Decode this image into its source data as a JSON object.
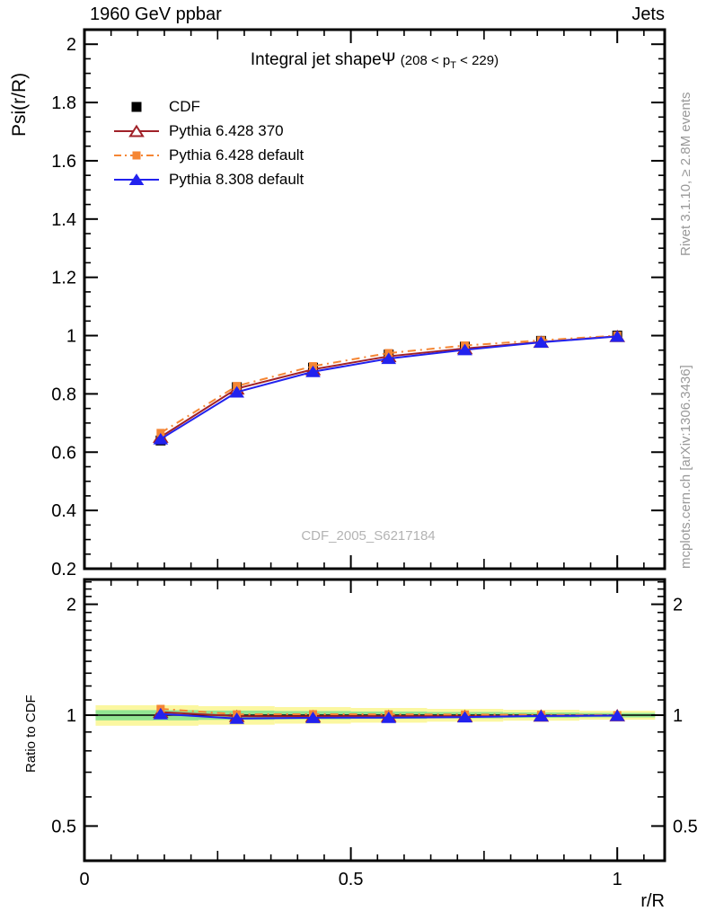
{
  "header": {
    "left_title": "1960 GeV ppbar",
    "right_title": "Jets"
  },
  "plot_title": {
    "main": "Integral jet shape",
    "symbol": "Ψ",
    "cut_prefix": "(208 < p",
    "cut_sub": "T",
    "cut_suffix": " < 229)"
  },
  "watermark": "CDF_2005_S6217184",
  "side_notes": {
    "top": "Rivet 3.1.10, ≥ 2.8M events",
    "bottom": "mcplots.cern.ch [arXiv:1306.3436]"
  },
  "axes": {
    "main_ylabel": "Psi(r/R)",
    "ratio_ylabel": "Ratio to CDF",
    "xlabel": "r/R",
    "main_yticks": [
      {
        "v": 2.0,
        "label": "2"
      },
      {
        "v": 1.8,
        "label": "1.8"
      },
      {
        "v": 1.6,
        "label": "1.6"
      },
      {
        "v": 1.4,
        "label": "1.4"
      },
      {
        "v": 1.2,
        "label": "1.2"
      },
      {
        "v": 1.0,
        "label": "1"
      },
      {
        "v": 0.8,
        "label": "0.8"
      },
      {
        "v": 0.6,
        "label": "0.6"
      },
      {
        "v": 0.4,
        "label": "0.4"
      },
      {
        "v": 0.2,
        "label": "0.2"
      }
    ],
    "xticks": [
      {
        "v": 0,
        "label": "0"
      },
      {
        "v": 0.5,
        "label": "0.5"
      },
      {
        "v": 1,
        "label": "1"
      }
    ],
    "ratio_yticks": [
      {
        "v": 2,
        "label": "2"
      },
      {
        "v": 1,
        "label": "1"
      },
      {
        "v": 0.5,
        "label": "0.5"
      }
    ]
  },
  "colors": {
    "black": "#000000",
    "dark_red": "#a02128",
    "orange": "#f58634",
    "blue": "#2222ee",
    "band_yellow": "#fbf7a0",
    "band_green": "#92e492",
    "gray_note": "#999999",
    "watermark_gray": "#b3b3b3"
  },
  "chart_data": {
    "type": "line",
    "title": "Integral jet shape Ψ (208 < pT < 229)",
    "xlabel": "r/R",
    "ylabel": "Psi(r/R)",
    "ratio_ylabel": "Ratio to CDF",
    "x": [
      0.143,
      0.286,
      0.429,
      0.571,
      0.714,
      0.857,
      1.0
    ],
    "xlim": [
      0,
      1.089
    ],
    "main_ylim": [
      0.2,
      2.05
    ],
    "ratio_ylim": [
      0.403,
      2.33
    ],
    "ratio_scale": "log",
    "legend_position": "top-left",
    "series": [
      {
        "name": "CDF",
        "role": "reference-data",
        "color": "#000000",
        "marker": "square",
        "marker_fill": "filled",
        "line": "none",
        "values": [
          0.64,
          0.823,
          0.89,
          0.935,
          0.962,
          0.982,
          1.0
        ],
        "ratio": [
          1,
          1,
          1,
          1,
          1,
          1,
          1
        ]
      },
      {
        "name": "Pythia 6.428 370",
        "role": "mc",
        "color": "#a02128",
        "marker": "triangle",
        "marker_fill": "open",
        "line": "solid",
        "values": [
          0.652,
          0.818,
          0.884,
          0.929,
          0.956,
          0.978,
          0.998
        ],
        "ratio": [
          1.019,
          0.994,
          0.993,
          0.994,
          0.994,
          0.996,
          0.998
        ]
      },
      {
        "name": "Pythia 6.428 default",
        "role": "mc",
        "color": "#f58634",
        "marker": "square",
        "marker_fill": "filled",
        "line": "dashdot",
        "values": [
          0.666,
          0.827,
          0.895,
          0.94,
          0.966,
          0.984,
          1.0
        ],
        "ratio": [
          1.04,
          1.005,
          1.006,
          1.005,
          1.004,
          1.002,
          1.0
        ]
      },
      {
        "name": "Pythia 8.308 default",
        "role": "mc",
        "color": "#2222ee",
        "marker": "triangle",
        "marker_fill": "filled",
        "line": "solid",
        "values": [
          0.645,
          0.806,
          0.876,
          0.921,
          0.951,
          0.977,
          0.997
        ],
        "ratio": [
          1.008,
          0.979,
          0.984,
          0.985,
          0.988,
          0.995,
          0.997
        ]
      }
    ],
    "ratio_bands": {
      "edges": [
        0.021,
        0.214,
        0.357,
        0.5,
        0.643,
        0.786,
        0.929,
        1.071
      ],
      "yellow_pct": [
        6.4,
        5.8,
        5.2,
        4.6,
        4.0,
        3.4,
        2.8
      ],
      "green_pct": [
        3.2,
        2.9,
        2.6,
        2.3,
        2.0,
        1.7,
        1.4
      ]
    }
  }
}
